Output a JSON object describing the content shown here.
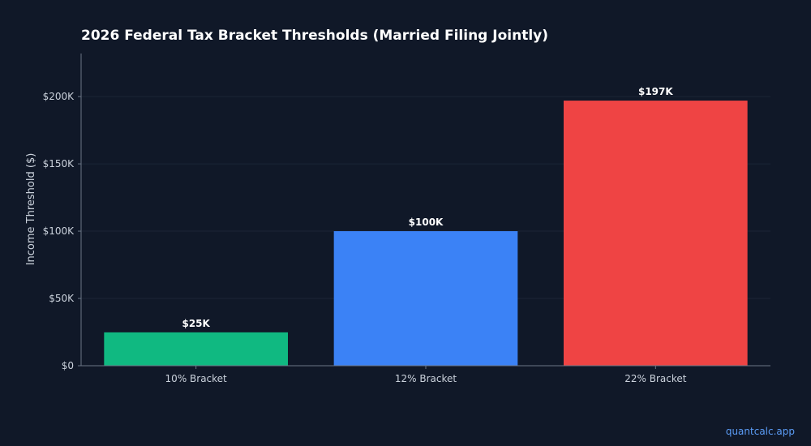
{
  "chart_data": {
    "type": "bar",
    "title": "2026 Federal Tax Bracket Thresholds (Married Filing Jointly)",
    "xlabel": "",
    "ylabel": "Income Threshold ($)",
    "categories": [
      "10% Bracket",
      "12% Bracket",
      "22% Bracket"
    ],
    "values": [
      24800,
      100000,
      197000
    ],
    "data_labels": [
      "$25K",
      "$100K",
      "$197K"
    ],
    "colors": [
      "#10b981",
      "#3b82f6",
      "#ef4444"
    ],
    "ylim": [
      0,
      232000
    ],
    "yticks": [
      0,
      50000,
      100000,
      150000,
      200000
    ],
    "ytick_labels": [
      "$0",
      "$50K",
      "$100K",
      "$150K",
      "$200K"
    ],
    "grid": true,
    "legend": "none"
  },
  "watermark": "quantcalc.app",
  "colors": {
    "background": "#101828",
    "text": "#cbd2dc",
    "title": "#ffffff",
    "axis": "#6b7686",
    "grid": "#1b2536",
    "watermark": "#5b9cf6"
  }
}
